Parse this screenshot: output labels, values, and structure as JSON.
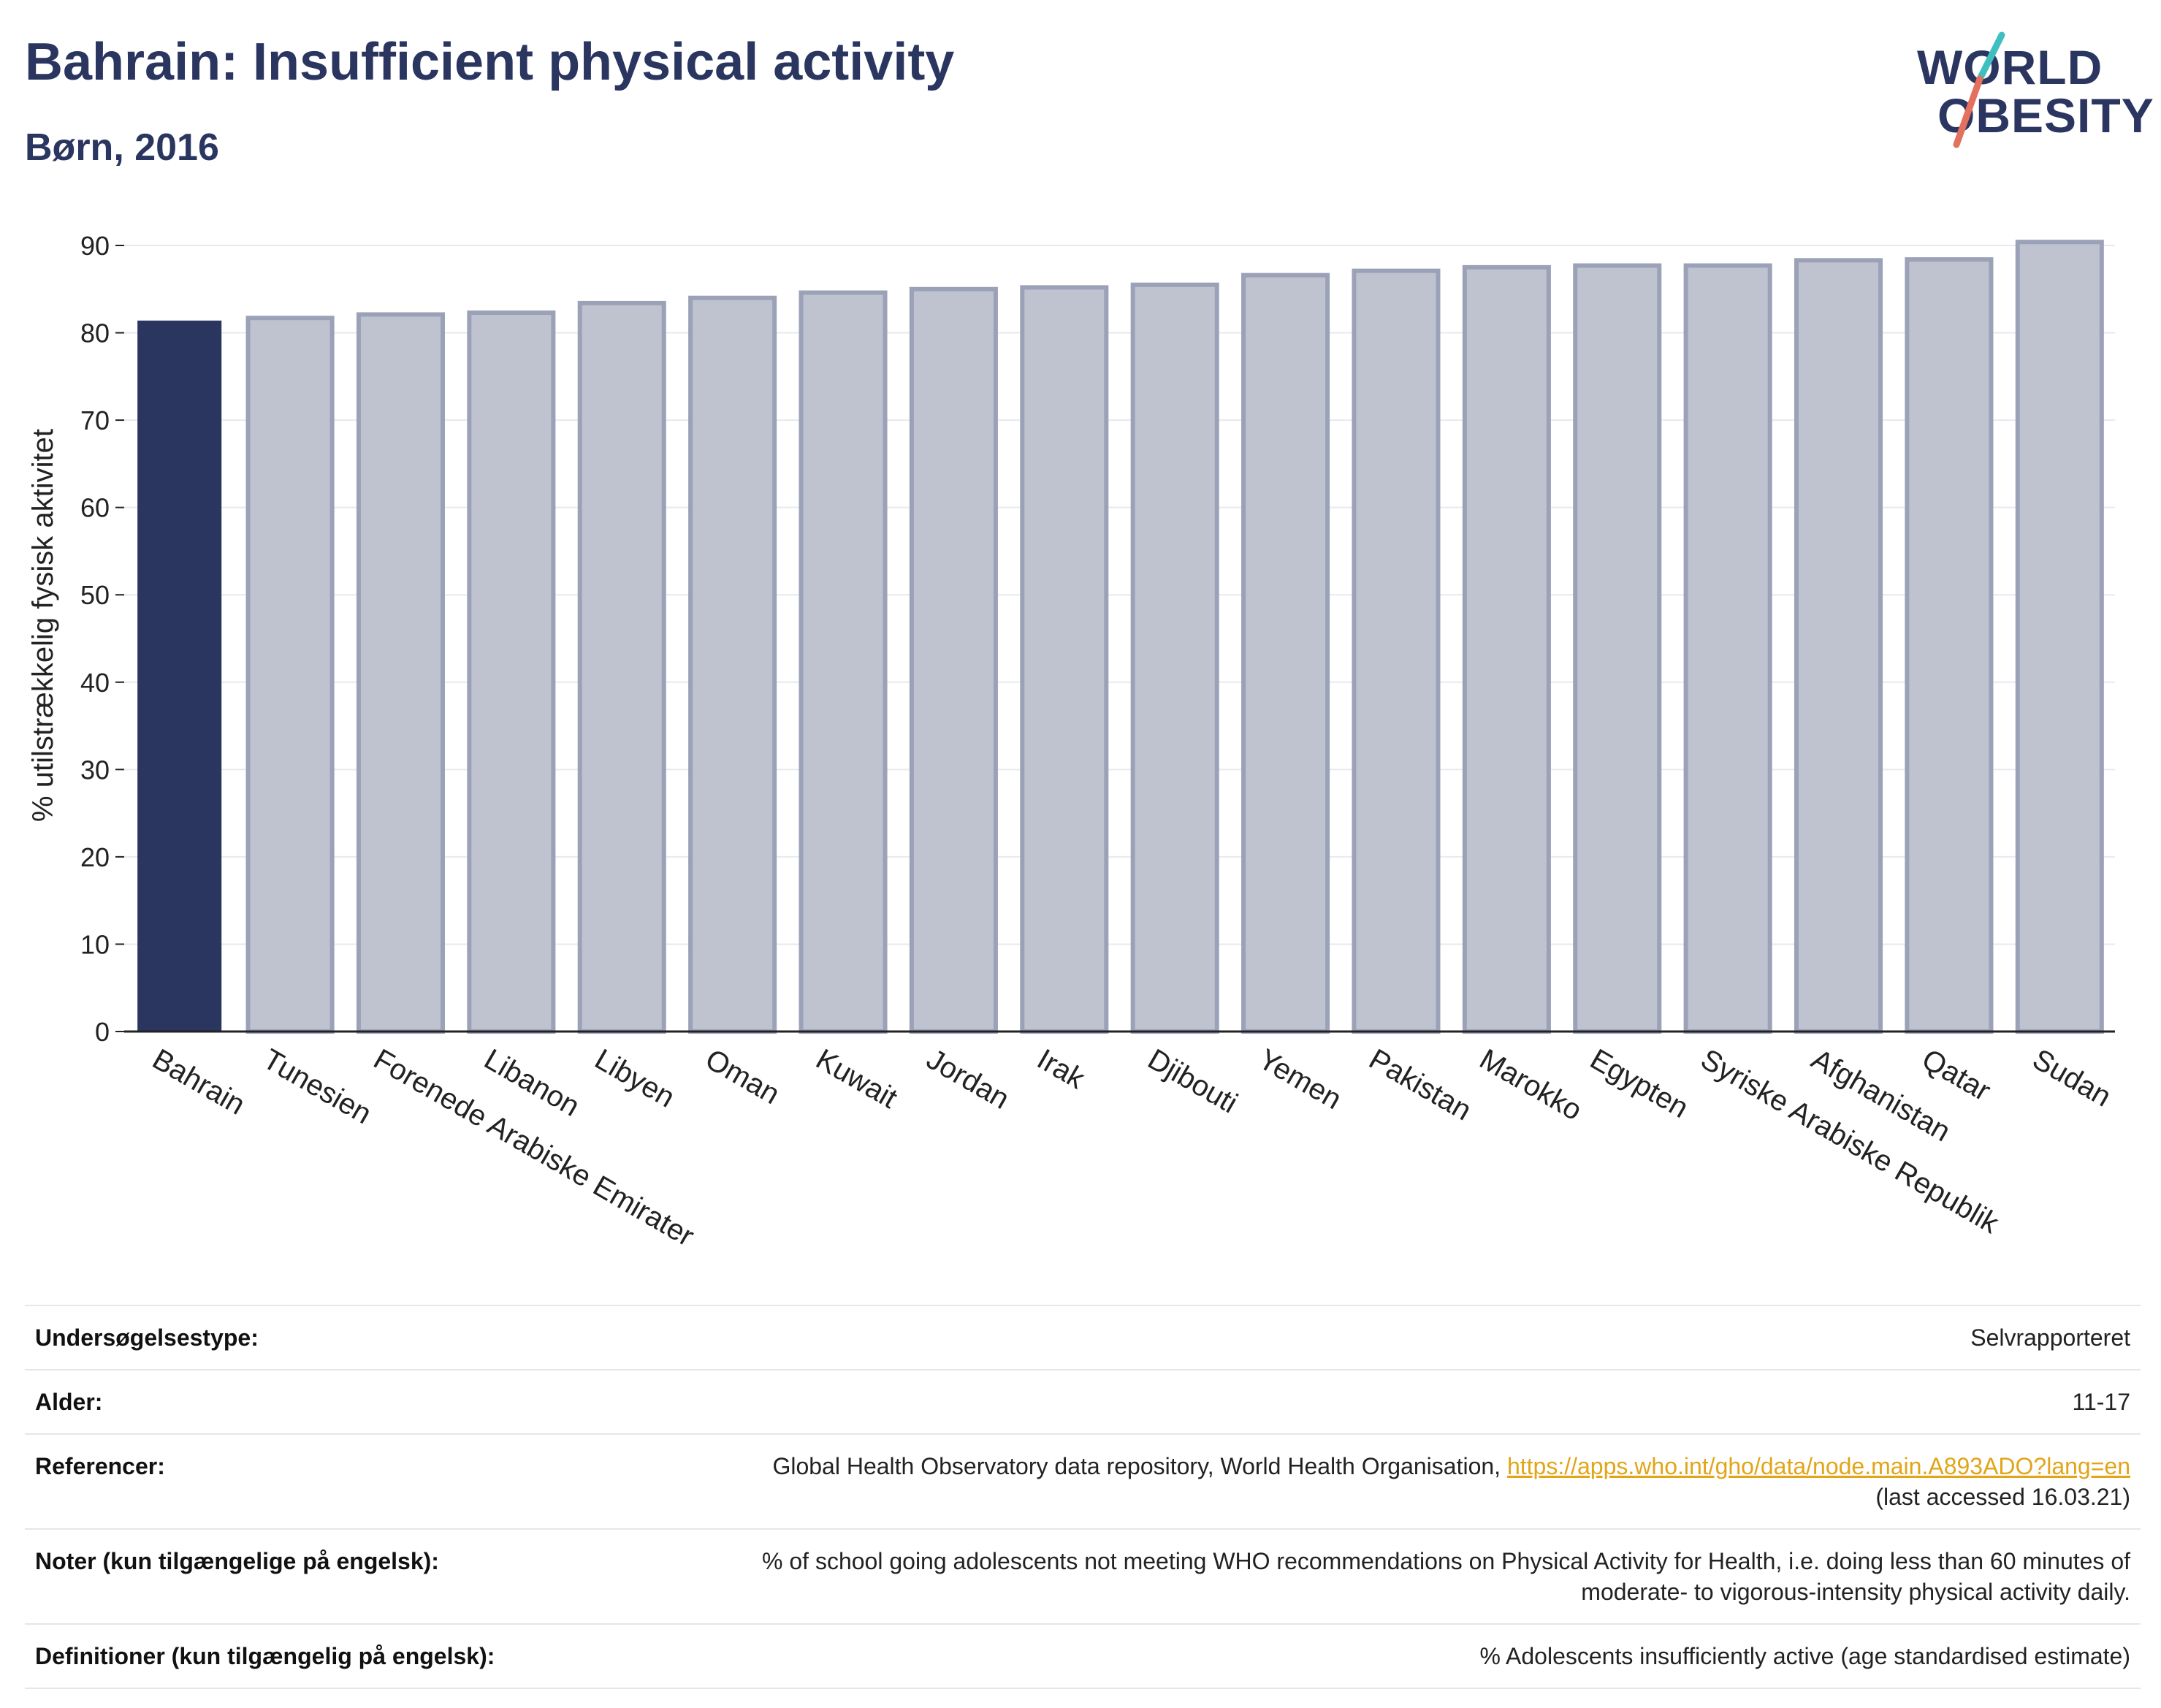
{
  "header": {
    "title": "Bahrain: Insufficient physical activity",
    "subtitle": "Børn, 2016",
    "logo": {
      "line1": "WORLD",
      "line2": "OBESITY"
    }
  },
  "colors": {
    "highlight": "#2b3660",
    "bar": "#bfc2cf",
    "bar_edge": "#9ba2b8",
    "title": "#2b3660",
    "link": "#e2a518"
  },
  "chart_data": {
    "type": "bar",
    "categories": [
      "Bahrain",
      "Tunesien",
      "Forenede Arabiske Emirater",
      "Libanon",
      "Libyen",
      "Oman",
      "Kuwait",
      "Jordan",
      "Irak",
      "Djibouti",
      "Yemen",
      "Pakistan",
      "Marokko",
      "Egypten",
      "Syriske Arabiske Republik",
      "Afghanistan",
      "Qatar",
      "Sudan"
    ],
    "values": [
      81.4,
      81.7,
      82.1,
      82.3,
      83.4,
      84.0,
      84.6,
      85.0,
      85.2,
      85.5,
      86.6,
      87.1,
      87.5,
      87.7,
      87.7,
      88.3,
      88.4,
      90.4
    ],
    "highlight_index": 0,
    "ylabel": "% utilstrækkelig fysisk aktivitet",
    "ylim": [
      0,
      90
    ],
    "yticks": [
      0,
      10,
      20,
      30,
      40,
      50,
      60,
      70,
      80,
      90
    ],
    "grid": true
  },
  "info": {
    "rows": [
      {
        "label": "Undersøgelsestype:",
        "value": "Selvrapporteret"
      },
      {
        "label": "Alder:",
        "value": "11-17"
      },
      {
        "label": "Referencer:",
        "value": "Global Health Observatory data repository, World Health Organisation,",
        "link": "https://apps.who.int/gho/data/node.main.A893ADO?lang=en",
        "value2": "(last accessed 16.03.21)"
      },
      {
        "label": "Noter (kun tilgængelige på engelsk):",
        "value": "% of school going adolescents not meeting WHO recommendations on Physical Activity for Health, i.e. doing less than 60 minutes of",
        "value2": "moderate- to vigorous-intensity physical activity daily."
      },
      {
        "label": "Definitioner (kun tilgængelig på engelsk):",
        "value": "% Adolescents insufficiently active (age standardised estimate)"
      }
    ]
  }
}
